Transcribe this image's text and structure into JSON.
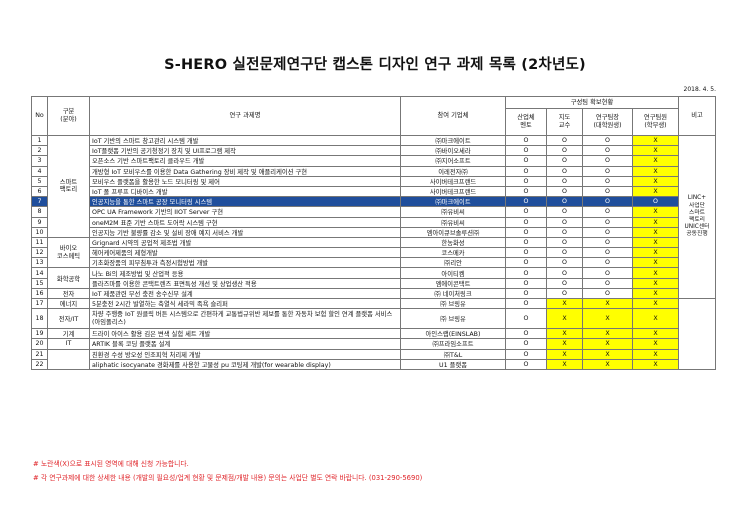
{
  "title": "S-HERO 실전문제연구단 캡스톤 디자인 연구 과제 목록 (2차년도)",
  "date": "2018. 4. 5.",
  "header": {
    "no": "No",
    "field": "구분\n(분야)",
    "task": "연구 과제명",
    "company": "참여 기업체",
    "team_status": "구성팀 확보현황",
    "mentor": "산업체\n멘토",
    "professor": "지도\n교수",
    "leader": "연구팀장\n(대학원생)",
    "member": "연구팀원\n(학부생)",
    "remarks": "비고"
  },
  "fields": {
    "smart_factory": "스마트\n팩토리",
    "bio": "바이오\n코스메틱",
    "chem": "화학공학",
    "electronics": "전자",
    "energy": "에너지",
    "electric_it": "전자/IT",
    "machine": "기계",
    "it": "IT"
  },
  "remarks_text": "LINC+\n사업단\n스마트\n팩토리\nUNIC센터\n공동진행",
  "rows": [
    {
      "no": "1",
      "task": "IoT 기반의 스마트 창고관리 시스템 개발",
      "company": "㈜마크에이트",
      "mentor": "O",
      "professor": "O",
      "leader": "O",
      "member": "X"
    },
    {
      "no": "2",
      "task": "IoT플랫폼 기반의 공기청정기 장치 및 UI프로그램 제작",
      "company": "㈜바이오세라",
      "mentor": "O",
      "professor": "O",
      "leader": "O",
      "member": "X"
    },
    {
      "no": "3",
      "task": "오픈소스 기반 스마트팩토리 클라우드 개발",
      "company": "㈜지어소프트",
      "mentor": "O",
      "professor": "O",
      "leader": "O",
      "member": "X"
    },
    {
      "no": "4",
      "task": "개방형 IoT 모비우스를 이용한 Data Gathering 장비 제작 및 애플리케이션 구현",
      "company": "이레전자㈜",
      "mentor": "O",
      "professor": "O",
      "leader": "O",
      "member": "X"
    },
    {
      "no": "5",
      "task": "모비우스 플랫폼을 활용한 노드 모니터링 및 제어",
      "company": "사이버테크프랜드",
      "mentor": "O",
      "professor": "O",
      "leader": "O",
      "member": "X"
    },
    {
      "no": "6",
      "task": "IoT 폴 프루프 디바이스 개발",
      "company": "사이버테크프랜드",
      "mentor": "O",
      "professor": "O",
      "leader": "O",
      "member": "X"
    },
    {
      "no": "7",
      "task": "인공지능을 통한 스마트 공장 모니터링 시스템",
      "company": "㈜마크에이트",
      "mentor": "O",
      "professor": "O",
      "leader": "O",
      "member": "O"
    },
    {
      "no": "8",
      "task": "OPC UA Framework 기반의 IIOT Server 구현",
      "company": "㈜유비씨",
      "mentor": "O",
      "professor": "O",
      "leader": "O",
      "member": "X"
    },
    {
      "no": "9",
      "task": "oneM2M 표준 기반 스마트 도어락 시스템 구현",
      "company": "㈜유비씨",
      "mentor": "O",
      "professor": "O",
      "leader": "O",
      "member": "X"
    },
    {
      "no": "10",
      "task": "인공지능 기반 불량률 감소 및 설비 장애 예지 서비스 개발",
      "company": "엠아이큐브솔루션㈜",
      "mentor": "O",
      "professor": "O",
      "leader": "O",
      "member": "X"
    },
    {
      "no": "11",
      "task": "Grignard 시약의 공업적 제조법 개발",
      "company": "한농화성",
      "mentor": "O",
      "professor": "O",
      "leader": "O",
      "member": "X"
    },
    {
      "no": "12",
      "task": "헤어케어제품의 제형개발",
      "company": "코스메카",
      "mentor": "O",
      "professor": "O",
      "leader": "O",
      "member": "X"
    },
    {
      "no": "13",
      "task": "기초화장품의 피부침투과 측정시험방법 개발",
      "company": "㈜리안",
      "mentor": "O",
      "professor": "O",
      "leader": "O",
      "member": "X"
    },
    {
      "no": "14",
      "task": "나노 Bi의 제조방법 및 산업적 응용",
      "company": "아이티켐",
      "mentor": "O",
      "professor": "O",
      "leader": "O",
      "member": "X"
    },
    {
      "no": "15",
      "task": "플라즈마를 이용한 콘택트렌즈 표면특성 개선 및 상업생산 적용",
      "company": "엠에이콘택트",
      "mentor": "O",
      "professor": "O",
      "leader": "O",
      "member": "X"
    },
    {
      "no": "16",
      "task": "IoT 제품관련 무선 충전 송수신부 설계",
      "company": "㈜ 네이처링크",
      "mentor": "O",
      "professor": "O",
      "leader": "O",
      "member": "X"
    },
    {
      "no": "17",
      "task": "5분충전 2시간 발열하는 축열식 세라믹 족욕 슬리퍼",
      "company": "㈜ 브링유",
      "mentor": "O",
      "professor": "X",
      "leader": "X",
      "member": "X"
    },
    {
      "no": "18",
      "task": "차량 주행중 IoT 원클릭 버튼 시스템으로 간편하게 교통법규위반 제보를 통한 자동차 보험 할인 연계 플랫폼 서비스 (아임폴리스)",
      "company": "㈜ 브링유",
      "mentor": "O",
      "professor": "X",
      "leader": "X",
      "member": "X"
    },
    {
      "no": "19",
      "task": "드라이 아이스 활용 김은 변색 실험 세트 개발",
      "company": "아인스랩(EINSLAB)",
      "mentor": "O",
      "professor": "X",
      "leader": "X",
      "member": "X"
    },
    {
      "no": "20",
      "task": "ARTIK 블록 코딩 플랫폼 설계",
      "company": "㈜프라임소프트",
      "mentor": "O",
      "professor": "X",
      "leader": "X",
      "member": "X"
    },
    {
      "no": "21",
      "task": "친환경 수성 방오성 인조피혁 처리제 개발",
      "company": "㈜T&L",
      "mentor": "O",
      "professor": "X",
      "leader": "X",
      "member": "X"
    },
    {
      "no": "22",
      "task": "aliphatic isocyanate 경화제를 사용한 고물성 pu 코팅제 개발(for wearable display)",
      "company": "U1 플랫폼",
      "mentor": "O",
      "professor": "X",
      "leader": "X",
      "member": "X"
    }
  ],
  "colors": {
    "yellow": "#ffff00",
    "highlight": "#1f4e9c",
    "note_red": "#e0262b"
  },
  "notes": [
    "# 노란색(X)으로 표시된 영역에 대해 신청 가능합니다.",
    "# 각 연구과제에 대한 상세한 내용 (개발의 필요성/업계 현황 및 문제점/개발 내용) 문의는 사업단 별도 연락 바랍니다. (031-290-5690)"
  ]
}
